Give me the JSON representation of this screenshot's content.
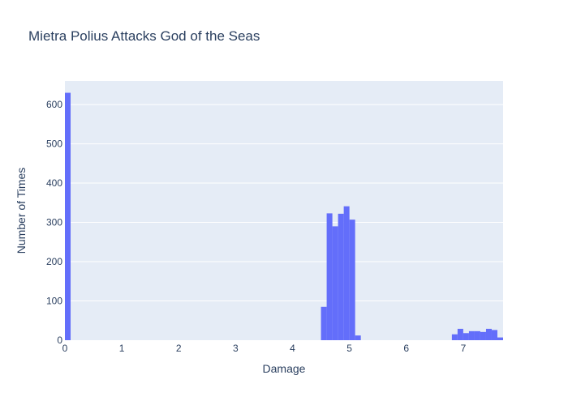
{
  "chart_data": {
    "type": "bar",
    "title": "Mietra Polius Attacks God of the Seas",
    "xlabel": "Damage",
    "ylabel": "Number of Times",
    "xlim": [
      0,
      7.7
    ],
    "ylim": [
      0,
      660
    ],
    "x_ticks": [
      "0",
      "1",
      "2",
      "3",
      "4",
      "5",
      "6",
      "7"
    ],
    "y_ticks": [
      "0",
      "100",
      "200",
      "300",
      "400",
      "500",
      "600"
    ],
    "grid": true,
    "plot_bgcolor": "#e5ecf6",
    "bar_color": "#636efa",
    "bin_width": 0.1,
    "bins": [
      {
        "x0": 0.0,
        "count": 630
      },
      {
        "x0": 4.5,
        "count": 85
      },
      {
        "x0": 4.6,
        "count": 323
      },
      {
        "x0": 4.7,
        "count": 290
      },
      {
        "x0": 4.8,
        "count": 322
      },
      {
        "x0": 4.9,
        "count": 341
      },
      {
        "x0": 5.0,
        "count": 307
      },
      {
        "x0": 5.1,
        "count": 12
      },
      {
        "x0": 6.8,
        "count": 15
      },
      {
        "x0": 6.9,
        "count": 29
      },
      {
        "x0": 7.0,
        "count": 18
      },
      {
        "x0": 7.1,
        "count": 23
      },
      {
        "x0": 7.2,
        "count": 23
      },
      {
        "x0": 7.3,
        "count": 21
      },
      {
        "x0": 7.4,
        "count": 29
      },
      {
        "x0": 7.5,
        "count": 26
      },
      {
        "x0": 7.6,
        "count": 7
      }
    ]
  }
}
